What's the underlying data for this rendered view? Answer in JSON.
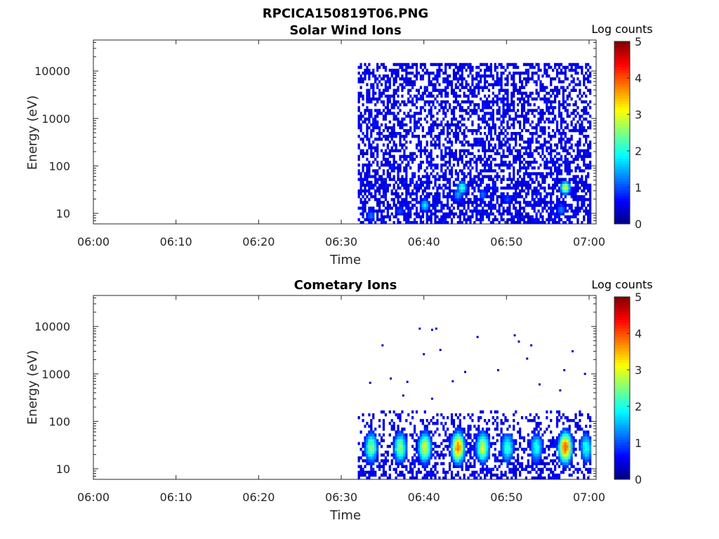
{
  "figure_title": "RPCICA150819T06.PNG",
  "colormap": [
    "#00007f",
    "#0000ff",
    "#007fff",
    "#00ffff",
    "#7fff7f",
    "#ffff00",
    "#ff7f00",
    "#ff0000",
    "#7f0000"
  ],
  "chart_data": [
    {
      "type": "heatmap",
      "title": "Solar Wind Ions",
      "xlabel": "Time",
      "ylabel": "Energy (eV)",
      "x_ticks": [
        "06:00",
        "06:10",
        "06:20",
        "06:30",
        "06:40",
        "06:50",
        "07:00"
      ],
      "y_ticks": [
        "10",
        "100",
        "1000",
        "10000"
      ],
      "y_scale": "log",
      "xlim": [
        "06:00",
        "07:00"
      ],
      "ylim": [
        6,
        45000
      ],
      "colorbar": {
        "label": "Log counts",
        "ticks": [
          "0",
          "1",
          "2",
          "3",
          "4",
          "5"
        ],
        "range": [
          0,
          5
        ]
      },
      "data_start": "06:32",
      "background_band": {
        "emin": 6,
        "emax": 15000,
        "level": 0.3,
        "density": 0.5
      },
      "hotspots": [
        {
          "t": "06:33.5",
          "e": 9,
          "level": 1.2
        },
        {
          "t": "06:37",
          "e": 11,
          "level": 1.0
        },
        {
          "t": "06:40",
          "e": 15,
          "level": 1.8
        },
        {
          "t": "06:44.5",
          "e": 35,
          "level": 2.2
        },
        {
          "t": "06:44",
          "e": 25,
          "level": 1.5
        },
        {
          "t": "06:47",
          "e": 25,
          "level": 1.2
        },
        {
          "t": "06:50",
          "e": 20,
          "level": 1.0
        },
        {
          "t": "06:57",
          "e": 35,
          "level": 3.0
        },
        {
          "t": "06:56.5",
          "e": 12,
          "level": 1.3
        }
      ]
    },
    {
      "type": "heatmap",
      "title": "Cometary Ions",
      "xlabel": "Time",
      "ylabel": "Energy (eV)",
      "x_ticks": [
        "06:00",
        "06:10",
        "06:20",
        "06:30",
        "06:40",
        "06:50",
        "07:00"
      ],
      "y_ticks": [
        "10",
        "100",
        "1000",
        "10000"
      ],
      "y_scale": "log",
      "xlim": [
        "06:00",
        "07:00"
      ],
      "ylim": [
        6,
        45000
      ],
      "colorbar": {
        "label": "Log counts",
        "ticks": [
          "0",
          "1",
          "2",
          "3",
          "4",
          "5"
        ],
        "range": [
          0,
          5
        ]
      },
      "data_start": "06:32",
      "background_band": {
        "emin": 6,
        "emax": 180,
        "level": 0.3,
        "density": 0.5
      },
      "bursts": [
        {
          "t": "06:33.5",
          "level": 2.5
        },
        {
          "t": "06:37",
          "level": 2.6
        },
        {
          "t": "06:40",
          "level": 3.0
        },
        {
          "t": "06:44",
          "level": 3.8
        },
        {
          "t": "06:47",
          "level": 2.9
        },
        {
          "t": "06:50",
          "level": 2.2
        },
        {
          "t": "06:53.5",
          "level": 2.0
        },
        {
          "t": "06:57",
          "level": 4.0
        },
        {
          "t": "06:59.5",
          "level": 2.0
        }
      ],
      "sparse_points": [
        {
          "t": "06:35",
          "e": 4000
        },
        {
          "t": "06:33.5",
          "e": 650
        },
        {
          "t": "06:38",
          "e": 680
        },
        {
          "t": "06:39.5",
          "e": 9000
        },
        {
          "t": "06:41",
          "e": 8500
        },
        {
          "t": "06:41.5",
          "e": 9000
        },
        {
          "t": "06:40",
          "e": 2600
        },
        {
          "t": "06:42",
          "e": 3200
        },
        {
          "t": "06:41",
          "e": 300
        },
        {
          "t": "06:43.5",
          "e": 700
        },
        {
          "t": "06:45",
          "e": 1100
        },
        {
          "t": "06:46.5",
          "e": 6000
        },
        {
          "t": "06:49",
          "e": 1200
        },
        {
          "t": "06:51",
          "e": 6500
        },
        {
          "t": "06:51.5",
          "e": 4800
        },
        {
          "t": "06:53",
          "e": 4000
        },
        {
          "t": "06:52.5",
          "e": 2100
        },
        {
          "t": "06:54",
          "e": 600
        },
        {
          "t": "06:57",
          "e": 1200
        },
        {
          "t": "06:58",
          "e": 3000
        },
        {
          "t": "06:59.5",
          "e": 1000
        },
        {
          "t": "06:56.5",
          "e": 450
        },
        {
          "t": "06:37.5",
          "e": 350
        },
        {
          "t": "06:36",
          "e": 800
        }
      ]
    }
  ]
}
